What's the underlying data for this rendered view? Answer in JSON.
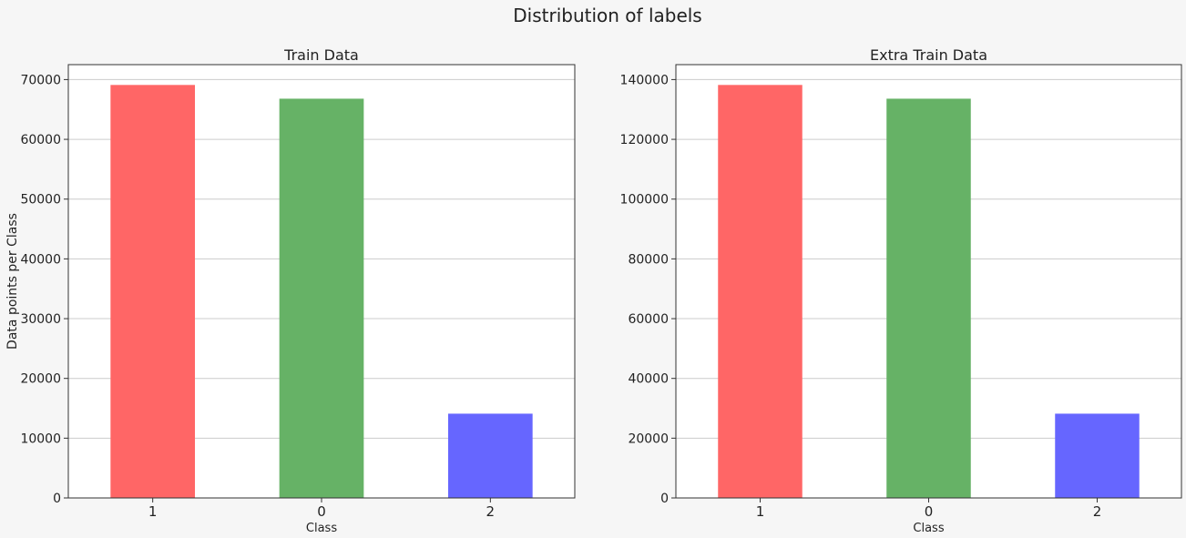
{
  "figure": {
    "title": "Distribution of labels",
    "background": "#f6f6f6"
  },
  "chart_data": [
    {
      "type": "bar",
      "title": "Train Data",
      "xlabel": "Class",
      "ylabel": "Data points per Class",
      "categories": [
        "1",
        "0",
        "2"
      ],
      "values": [
        69100,
        66800,
        14100
      ],
      "colors": [
        "#ff6666",
        "#66b266",
        "#6666ff"
      ],
      "ylim": [
        0,
        72500
      ],
      "yticks": [
        0,
        10000,
        20000,
        30000,
        40000,
        50000,
        60000,
        70000
      ],
      "ytick_labels": [
        "0",
        "10000",
        "20000",
        "30000",
        "40000",
        "50000",
        "60000",
        "70000"
      ],
      "grid": "y"
    },
    {
      "type": "bar",
      "title": "Extra Train Data",
      "xlabel": "Class",
      "ylabel": "",
      "categories": [
        "1",
        "0",
        "2"
      ],
      "values": [
        138200,
        133600,
        28200
      ],
      "colors": [
        "#ff6666",
        "#66b266",
        "#6666ff"
      ],
      "ylim": [
        0,
        145000
      ],
      "yticks": [
        0,
        20000,
        40000,
        60000,
        80000,
        100000,
        120000,
        140000
      ],
      "ytick_labels": [
        "0",
        "20000",
        "40000",
        "60000",
        "80000",
        "100000",
        "120000",
        "140000"
      ],
      "grid": "y"
    }
  ]
}
